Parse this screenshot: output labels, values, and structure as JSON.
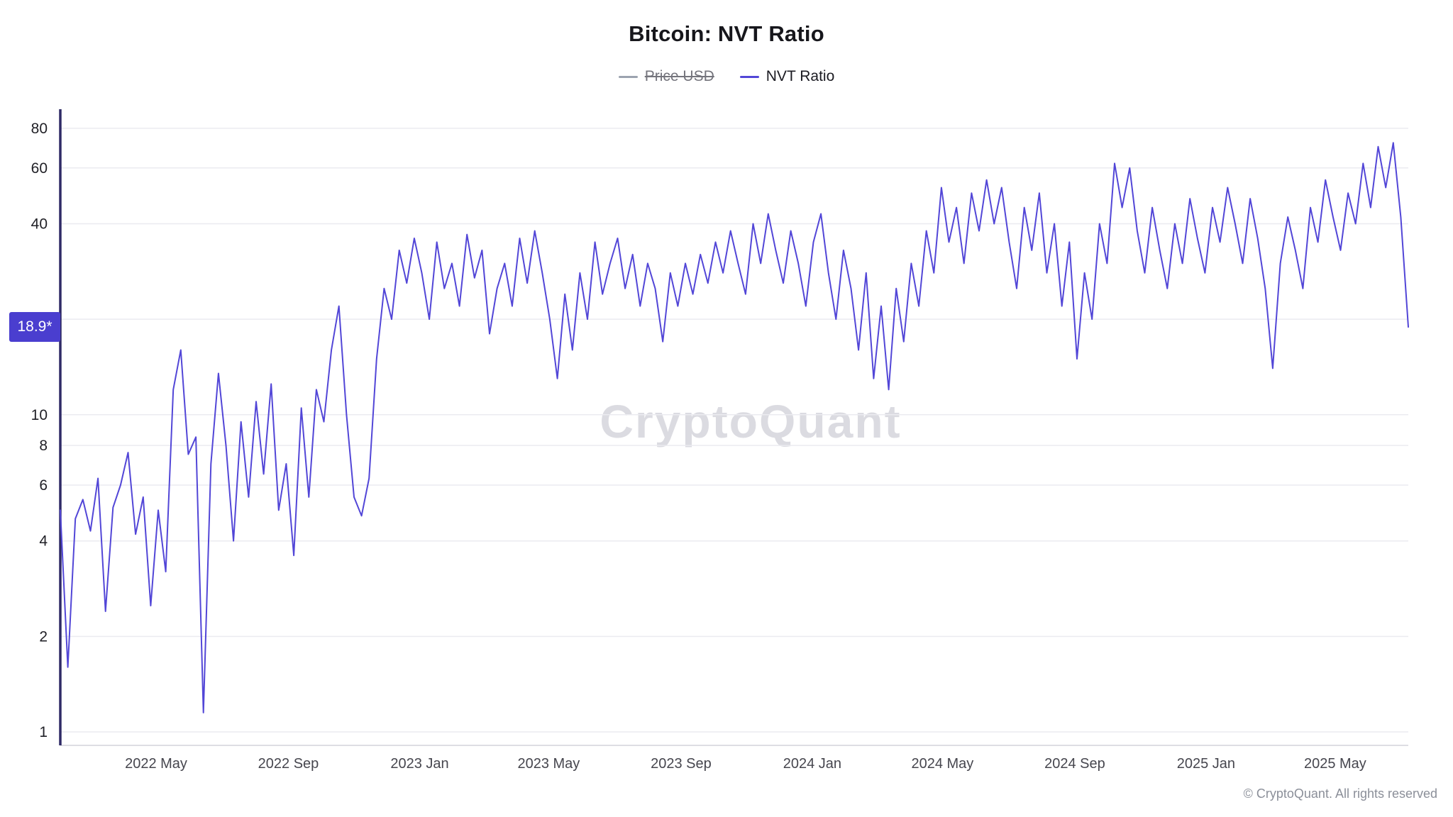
{
  "meta": {
    "title": "Bitcoin: NVT Ratio"
  },
  "legend": [
    {
      "label": "Price USD",
      "color": "#9ca3af",
      "disabled": true
    },
    {
      "label": "NVT Ratio",
      "color": "#5246d7",
      "disabled": false
    }
  ],
  "badge": {
    "label": "18.9*",
    "value": 18.9,
    "color": "#4a3ecf"
  },
  "watermark": "CryptoQuant",
  "footer": "© CryptoQuant. All rights reserved",
  "theme": {
    "grid": "#ebebf0",
    "axis_x": "#d4d4da",
    "axis_y": "#2f2a66",
    "line": "#5246d7"
  },
  "chart_data": {
    "type": "line",
    "title": "Bitcoin: NVT Ratio",
    "y_scale": "log",
    "ylim": [
      1,
      90
    ],
    "y_ticks": [
      1,
      2,
      4,
      6,
      8,
      10,
      40,
      60,
      80
    ],
    "y_grid": [
      1,
      2,
      4,
      6,
      8,
      10,
      20,
      40,
      60,
      80
    ],
    "x_range": [
      "2022-02-01",
      "2025-07-08"
    ],
    "x_ticks": [
      {
        "date": "2022-05-01",
        "label": "2022 May"
      },
      {
        "date": "2022-09-01",
        "label": "2022 Sep"
      },
      {
        "date": "2023-01-01",
        "label": "2023 Jan"
      },
      {
        "date": "2023-05-01",
        "label": "2023 May"
      },
      {
        "date": "2023-09-01",
        "label": "2023 Sep"
      },
      {
        "date": "2024-01-01",
        "label": "2024 Jan"
      },
      {
        "date": "2024-05-01",
        "label": "2024 May"
      },
      {
        "date": "2024-09-01",
        "label": "2024 Sep"
      },
      {
        "date": "2025-01-01",
        "label": "2025 Jan"
      },
      {
        "date": "2025-05-01",
        "label": "2025 May"
      }
    ],
    "last_value_label": "18.9*",
    "series": [
      {
        "name": "NVT Ratio",
        "color": "#5246d7",
        "start_date": "2022-02-01",
        "interval_days": 7,
        "values": [
          5.0,
          1.6,
          4.7,
          5.4,
          4.3,
          6.3,
          2.4,
          5.1,
          6.0,
          7.6,
          4.2,
          5.5,
          2.5,
          5.0,
          3.2,
          12.0,
          16.0,
          7.5,
          8.5,
          1.15,
          7.0,
          13.5,
          8.0,
          4.0,
          9.5,
          5.5,
          11.0,
          6.5,
          12.5,
          5.0,
          7.0,
          3.6,
          10.5,
          5.5,
          12.0,
          9.5,
          16.0,
          22.0,
          10.0,
          5.5,
          4.8,
          6.3,
          15.0,
          25.0,
          20.0,
          33.0,
          26.0,
          36.0,
          28.0,
          20.0,
          35.0,
          25.0,
          30.0,
          22.0,
          37.0,
          27.0,
          33.0,
          18.0,
          25.0,
          30.0,
          22.0,
          36.0,
          26.0,
          38.0,
          28.0,
          20.0,
          13.0,
          24.0,
          16.0,
          28.0,
          20.0,
          35.0,
          24.0,
          30.0,
          36.0,
          25.0,
          32.0,
          22.0,
          30.0,
          25.0,
          17.0,
          28.0,
          22.0,
          30.0,
          24.0,
          32.0,
          26.0,
          35.0,
          28.0,
          38.0,
          30.0,
          24.0,
          40.0,
          30.0,
          43.0,
          33.0,
          26.0,
          38.0,
          30.0,
          22.0,
          35.0,
          43.0,
          28.0,
          20.0,
          33.0,
          25.0,
          16.0,
          28.0,
          13.0,
          22.0,
          12.0,
          25.0,
          17.0,
          30.0,
          22.0,
          38.0,
          28.0,
          52.0,
          35.0,
          45.0,
          30.0,
          50.0,
          38.0,
          55.0,
          40.0,
          52.0,
          35.0,
          25.0,
          45.0,
          33.0,
          50.0,
          28.0,
          40.0,
          22.0,
          35.0,
          15.0,
          28.0,
          20.0,
          40.0,
          30.0,
          62.0,
          45.0,
          60.0,
          38.0,
          28.0,
          45.0,
          33.0,
          25.0,
          40.0,
          30.0,
          48.0,
          36.0,
          28.0,
          45.0,
          35.0,
          52.0,
          40.0,
          30.0,
          48.0,
          36.0,
          25.0,
          14.0,
          30.0,
          42.0,
          33.0,
          25.0,
          45.0,
          35.0,
          55.0,
          42.0,
          33.0,
          50.0,
          40.0,
          62.0,
          45.0,
          70.0,
          52.0,
          72.0,
          42.0,
          18.9
        ]
      }
    ]
  }
}
